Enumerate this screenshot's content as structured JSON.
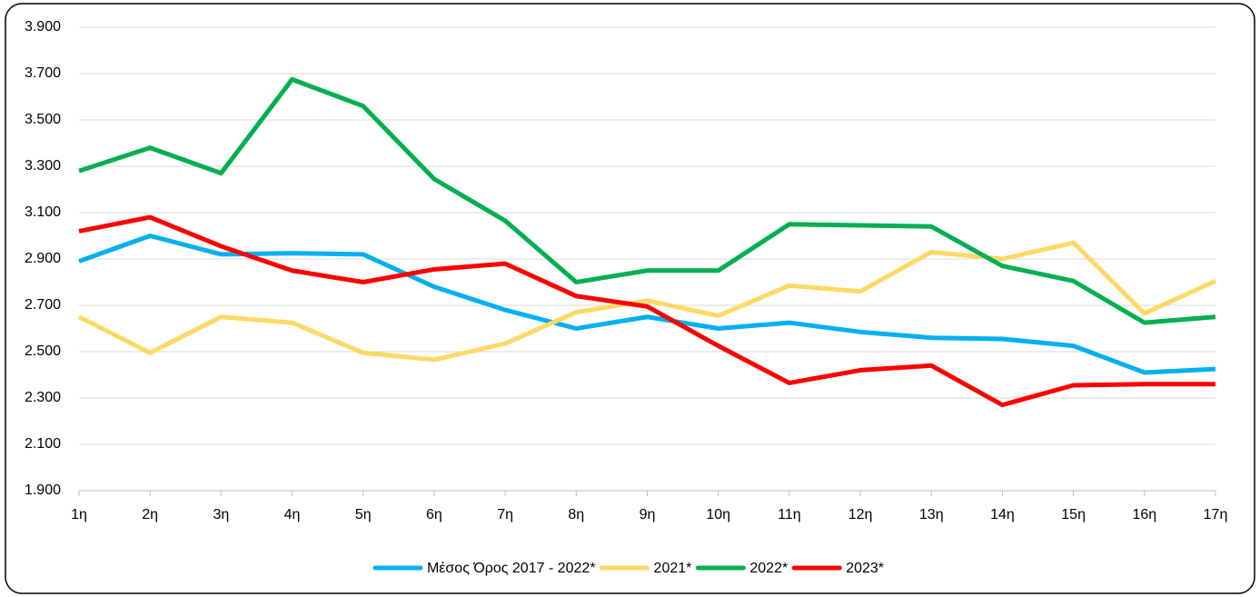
{
  "chart_data": {
    "type": "line",
    "categories": [
      "1η",
      "2η",
      "3η",
      "4η",
      "5η",
      "6η",
      "7η",
      "8η",
      "9η",
      "10η",
      "11η",
      "12η",
      "13η",
      "14η",
      "15η",
      "16η",
      "17η"
    ],
    "series": [
      {
        "name": "Μέσος Όρος 2017 - 2022*",
        "color": "#00b0f0",
        "values": [
          2890,
          3000,
          2920,
          2925,
          2920,
          2780,
          2680,
          2600,
          2650,
          2600,
          2625,
          2585,
          2560,
          2555,
          2525,
          2410,
          2425
        ]
      },
      {
        "name": "2021*",
        "color": "#ffd966",
        "values": [
          2650,
          2495,
          2650,
          2625,
          2495,
          2465,
          2535,
          2670,
          2720,
          2655,
          2785,
          2760,
          2930,
          2900,
          2970,
          2665,
          2805
        ]
      },
      {
        "name": "2022*",
        "color": "#00b050",
        "values": [
          3280,
          3380,
          3270,
          3675,
          3560,
          3245,
          3065,
          2800,
          2850,
          2850,
          3050,
          3045,
          3040,
          2870,
          2805,
          2625,
          2650
        ]
      },
      {
        "name": "2023*",
        "color": "#ff0000",
        "values": [
          3020,
          3080,
          2955,
          2850,
          2800,
          2855,
          2880,
          2740,
          2695,
          2525,
          2365,
          2420,
          2440,
          2270,
          2355,
          2360,
          2360
        ]
      }
    ],
    "ylim": [
      1900,
      3900
    ],
    "yticks": [
      {
        "value": 1900,
        "label": "1.900"
      },
      {
        "value": 2100,
        "label": "2.100"
      },
      {
        "value": 2300,
        "label": "2.300"
      },
      {
        "value": 2500,
        "label": "2.500"
      },
      {
        "value": 2700,
        "label": "2.700"
      },
      {
        "value": 2900,
        "label": "2.900"
      },
      {
        "value": 3100,
        "label": "3.100"
      },
      {
        "value": 3300,
        "label": "3.300"
      },
      {
        "value": 3500,
        "label": "3.500"
      },
      {
        "value": 3700,
        "label": "3.700"
      },
      {
        "value": 3900,
        "label": "3.900"
      }
    ],
    "grid": true,
    "legend": "bottom"
  }
}
